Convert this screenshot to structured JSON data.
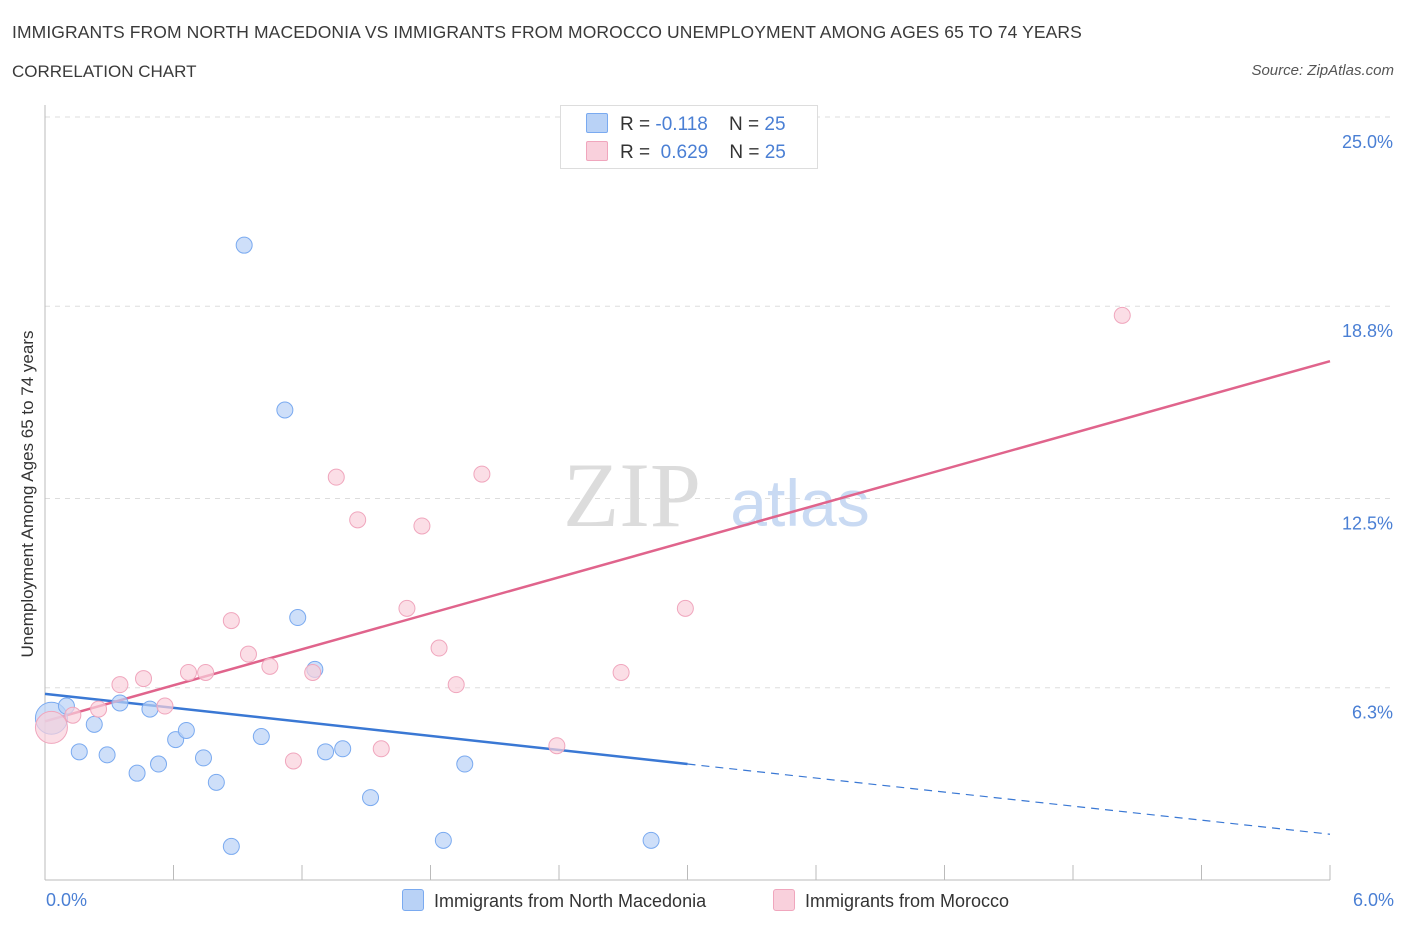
{
  "header": {
    "title": "IMMIGRANTS FROM NORTH MACEDONIA VS IMMIGRANTS FROM MOROCCO UNEMPLOYMENT AMONG AGES 65 TO 74 YEARS",
    "subtitle": "CORRELATION CHART",
    "source": "Source: ZipAtlas.com"
  },
  "stats": {
    "r_label": "R =",
    "n_label": "N =",
    "series1": {
      "r": "-0.118",
      "n": "25"
    },
    "series2": {
      "r": "0.629",
      "n": "25"
    }
  },
  "watermark": {
    "zip": "ZIP",
    "atlas": "atlas"
  },
  "chart_data": {
    "type": "scatter",
    "title": "IMMIGRANTS FROM NORTH MACEDONIA VS IMMIGRANTS FROM MOROCCO UNEMPLOYMENT AMONG AGES 65 TO 74 YEARS",
    "xlabel": "",
    "ylabel": "Unemployment Among Ages 65 to 74 years",
    "xlim": [
      0,
      6.0
    ],
    "ylim": [
      0,
      25.0
    ],
    "x_tick_labels": [
      "0.0%",
      "6.0%"
    ],
    "y_ticks": [
      {
        "value": 6.3,
        "label": "6.3%"
      },
      {
        "value": 12.5,
        "label": "12.5%"
      },
      {
        "value": 18.8,
        "label": "18.8%"
      },
      {
        "value": 25.0,
        "label": "25.0%"
      }
    ],
    "grid": true,
    "legend_position": "bottom-center",
    "series": [
      {
        "name": "Immigrants from North Macedonia",
        "color": "#7aaaf0",
        "fill": "#b9d2f6",
        "line_color": "#3a78d4",
        "trend": {
          "x0": 0.0,
          "y0": 6.1,
          "x1": 3.0,
          "y1": 3.8,
          "dash_to_x": 6.0,
          "dash_to_y": 1.5
        },
        "points": [
          {
            "x": 0.03,
            "y": 5.3,
            "big": true
          },
          {
            "x": 0.1,
            "y": 5.7
          },
          {
            "x": 0.16,
            "y": 4.2
          },
          {
            "x": 0.23,
            "y": 5.1
          },
          {
            "x": 0.29,
            "y": 4.1
          },
          {
            "x": 0.35,
            "y": 5.8
          },
          {
            "x": 0.43,
            "y": 3.5
          },
          {
            "x": 0.49,
            "y": 5.6
          },
          {
            "x": 0.53,
            "y": 3.8
          },
          {
            "x": 0.61,
            "y": 4.6
          },
          {
            "x": 0.66,
            "y": 4.9
          },
          {
            "x": 0.74,
            "y": 4.0
          },
          {
            "x": 0.8,
            "y": 3.2
          },
          {
            "x": 0.87,
            "y": 1.1
          },
          {
            "x": 0.93,
            "y": 20.8
          },
          {
            "x": 1.01,
            "y": 4.7
          },
          {
            "x": 1.12,
            "y": 15.4
          },
          {
            "x": 1.18,
            "y": 8.6
          },
          {
            "x": 1.26,
            "y": 6.9
          },
          {
            "x": 1.31,
            "y": 4.2
          },
          {
            "x": 1.39,
            "y": 4.3
          },
          {
            "x": 1.52,
            "y": 2.7
          },
          {
            "x": 1.86,
            "y": 1.3
          },
          {
            "x": 1.96,
            "y": 3.8
          },
          {
            "x": 2.83,
            "y": 1.3
          }
        ]
      },
      {
        "name": "Immigrants from Morocco",
        "color": "#f0a6bd",
        "fill": "#f9d0dc",
        "line_color": "#e0648c",
        "trend": {
          "x0": 0.0,
          "y0": 5.2,
          "x1": 6.0,
          "y1": 17.0
        },
        "points": [
          {
            "x": 0.03,
            "y": 5.0,
            "big": true
          },
          {
            "x": 0.13,
            "y": 5.4
          },
          {
            "x": 0.25,
            "y": 5.6
          },
          {
            "x": 0.35,
            "y": 6.4
          },
          {
            "x": 0.46,
            "y": 6.6
          },
          {
            "x": 0.56,
            "y": 5.7
          },
          {
            "x": 0.67,
            "y": 6.8
          },
          {
            "x": 0.75,
            "y": 6.8
          },
          {
            "x": 0.87,
            "y": 8.5
          },
          {
            "x": 0.95,
            "y": 7.4
          },
          {
            "x": 1.05,
            "y": 7.0
          },
          {
            "x": 1.16,
            "y": 3.9
          },
          {
            "x": 1.25,
            "y": 6.8
          },
          {
            "x": 1.36,
            "y": 13.2
          },
          {
            "x": 1.46,
            "y": 11.8
          },
          {
            "x": 1.57,
            "y": 4.3
          },
          {
            "x": 1.69,
            "y": 8.9
          },
          {
            "x": 1.76,
            "y": 11.6
          },
          {
            "x": 1.84,
            "y": 7.6
          },
          {
            "x": 1.92,
            "y": 6.4
          },
          {
            "x": 2.04,
            "y": 13.3
          },
          {
            "x": 2.39,
            "y": 4.4
          },
          {
            "x": 2.69,
            "y": 6.8
          },
          {
            "x": 2.99,
            "y": 8.9
          },
          {
            "x": 5.03,
            "y": 18.5
          }
        ]
      }
    ]
  }
}
